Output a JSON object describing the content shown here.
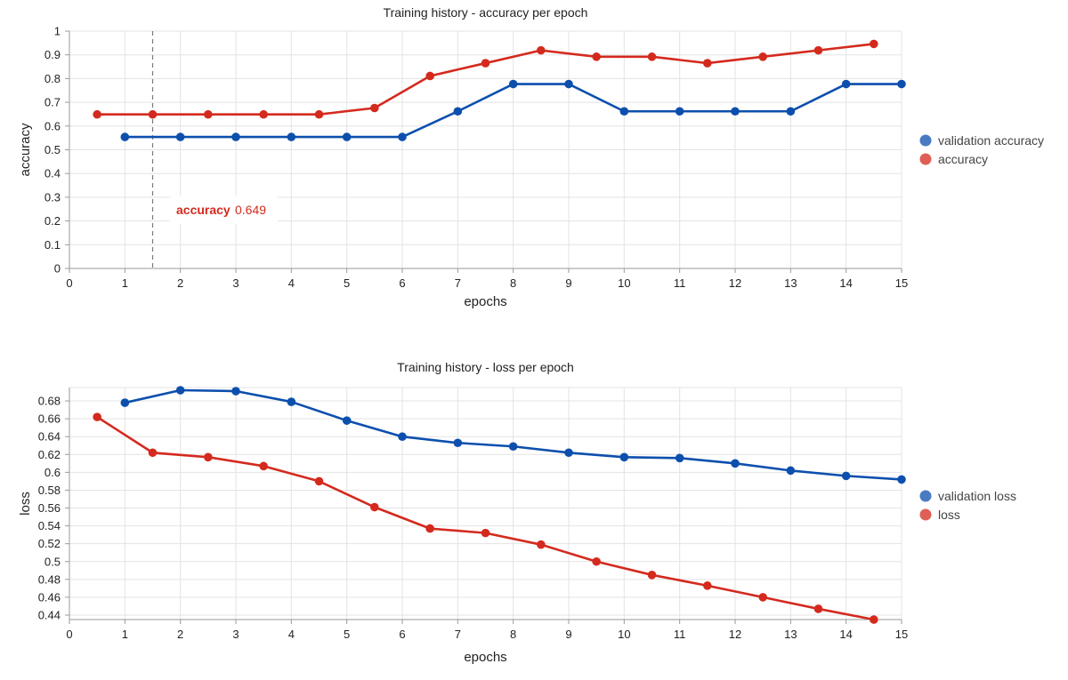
{
  "chart_data": [
    {
      "type": "line",
      "title": "Training history - accuracy per epoch",
      "xlabel": "epochs",
      "ylabel": "accuracy",
      "xlim": [
        0,
        15
      ],
      "ylim": [
        0,
        1
      ],
      "xticks": [
        0,
        1,
        2,
        3,
        4,
        5,
        6,
        7,
        8,
        9,
        10,
        11,
        12,
        13,
        14,
        15
      ],
      "yticks": [
        0,
        0.1,
        0.2,
        0.3,
        0.4,
        0.5,
        0.6,
        0.7,
        0.8,
        0.9,
        1
      ],
      "ytick_labels": [
        "0",
        "0.1",
        "0.2",
        "0.3",
        "0.4",
        "0.5",
        "0.6",
        "0.7",
        "0.8",
        "0.9",
        "1"
      ],
      "grid": true,
      "legend_position": "right",
      "series": [
        {
          "name": "validation accuracy",
          "color": "#0d4fad",
          "x": [
            1,
            2,
            3,
            4,
            5,
            6,
            7,
            8,
            9,
            10,
            11,
            12,
            13,
            14,
            15
          ],
          "values": [
            0.554,
            0.554,
            0.554,
            0.554,
            0.554,
            0.554,
            0.662,
            0.777,
            0.777,
            0.662,
            0.662,
            0.662,
            0.662,
            0.777,
            0.777
          ]
        },
        {
          "name": "accuracy",
          "color": "#d42a1e",
          "x": [
            0.5,
            1.5,
            2.5,
            3.5,
            4.5,
            5.5,
            6.5,
            7.5,
            8.5,
            9.5,
            10.5,
            11.5,
            12.5,
            13.5,
            14.5
          ],
          "values": [
            0.649,
            0.649,
            0.649,
            0.649,
            0.649,
            0.676,
            0.811,
            0.865,
            0.919,
            0.892,
            0.892,
            0.865,
            0.892,
            0.919,
            0.946
          ]
        }
      ],
      "tooltip": {
        "x": 1.5,
        "series": "accuracy",
        "label": "accuracy",
        "value": "0.649"
      }
    },
    {
      "type": "line",
      "title": "Training history - loss per epoch",
      "xlabel": "epochs",
      "ylabel": "loss",
      "xlim": [
        0,
        15
      ],
      "ylim": [
        0.435,
        0.695
      ],
      "xticks": [
        0,
        1,
        2,
        3,
        4,
        5,
        6,
        7,
        8,
        9,
        10,
        11,
        12,
        13,
        14,
        15
      ],
      "yticks": [
        0.44,
        0.46,
        0.48,
        0.5,
        0.52,
        0.54,
        0.56,
        0.58,
        0.6,
        0.62,
        0.64,
        0.66,
        0.68
      ],
      "ytick_labels": [
        "0.44",
        "0.46",
        "0.48",
        "0.5",
        "0.52",
        "0.54",
        "0.56",
        "0.58",
        "0.6",
        "0.62",
        "0.64",
        "0.66",
        "0.68"
      ],
      "grid": true,
      "legend_position": "right",
      "series": [
        {
          "name": "validation loss",
          "color": "#0d4fad",
          "x": [
            1,
            2,
            3,
            4,
            5,
            6,
            7,
            8,
            9,
            10,
            11,
            12,
            13,
            14,
            15
          ],
          "values": [
            0.678,
            0.692,
            0.691,
            0.679,
            0.658,
            0.64,
            0.633,
            0.629,
            0.622,
            0.617,
            0.616,
            0.61,
            0.602,
            0.596,
            0.592
          ]
        },
        {
          "name": "loss",
          "color": "#d42a1e",
          "x": [
            0.5,
            1.5,
            2.5,
            3.5,
            4.5,
            5.5,
            6.5,
            7.5,
            8.5,
            9.5,
            10.5,
            11.5,
            12.5,
            13.5,
            14.5
          ],
          "values": [
            0.662,
            0.622,
            0.617,
            0.607,
            0.59,
            0.561,
            0.537,
            0.532,
            0.519,
            0.5,
            0.485,
            0.473,
            0.46,
            0.447,
            0.435
          ]
        }
      ]
    }
  ]
}
